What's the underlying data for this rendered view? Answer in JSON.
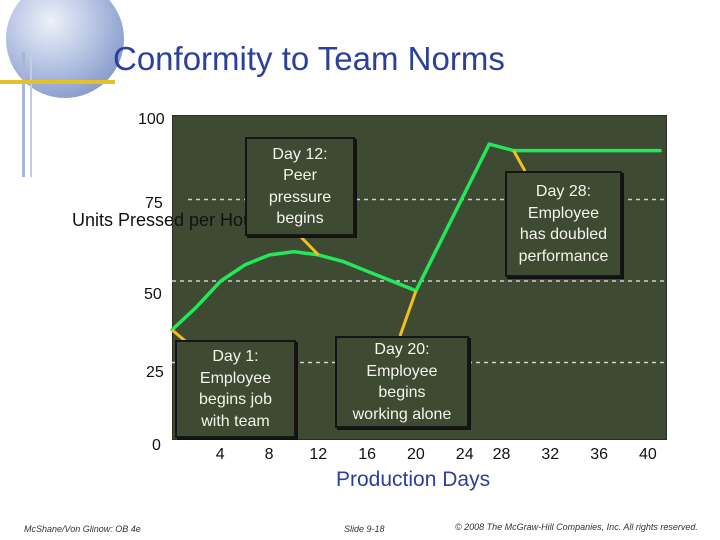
{
  "slide": {
    "title": "Conformity to Team Norms",
    "footer_left": "McShane/Von Glinow: OB 4e",
    "footer_center": "Slide 9-18",
    "footer_right": "© 2008 The McGraw-Hill Companies, Inc. All rights reserved."
  },
  "colors": {
    "title": "#2c3f9b",
    "plot_background": "#3f4a33",
    "series_line": "#22e85a",
    "callout_arrow": "#f0c020",
    "gridline": "#cfcfcf"
  },
  "chart_data": {
    "type": "line",
    "title": "Conformity to Team Norms",
    "xlabel": "Production Days",
    "ylabel": "Units Pressed per Hour",
    "xlim": [
      0,
      40
    ],
    "ylim": [
      0,
      100
    ],
    "x_ticks": [
      "0",
      "4",
      "8",
      "12",
      "16",
      "20",
      "24",
      "28",
      "32",
      "36",
      "40"
    ],
    "y_ticks": [
      "100",
      "75",
      "50",
      "25"
    ],
    "grid": "dashed horizontal at 25, 50, 75",
    "legend": "none",
    "series": [
      {
        "x": [
          0,
          2,
          4,
          6,
          8,
          10,
          12,
          14,
          16,
          18,
          20,
          22,
          24,
          26,
          28,
          32,
          36,
          40
        ],
        "y": [
          35,
          42,
          50,
          55,
          58,
          59,
          58,
          56,
          53,
          50,
          47,
          62,
          77,
          92,
          90,
          90,
          90,
          90
        ]
      }
    ],
    "annotations": [
      {
        "label": "Day 1:\nEmployee\nbegins job\nwith team",
        "x": 0,
        "y": 35
      },
      {
        "label": "Day 12:\nPeer\npressure\nbegins",
        "x": 12,
        "y": 58
      },
      {
        "label": "Day 20:\nEmployee\nbegins\nworking alone",
        "x": 20,
        "y": 47
      },
      {
        "label": "Day 28:\nEmployee\nhas doubled\nperformance",
        "x": 28,
        "y": 90
      }
    ]
  }
}
